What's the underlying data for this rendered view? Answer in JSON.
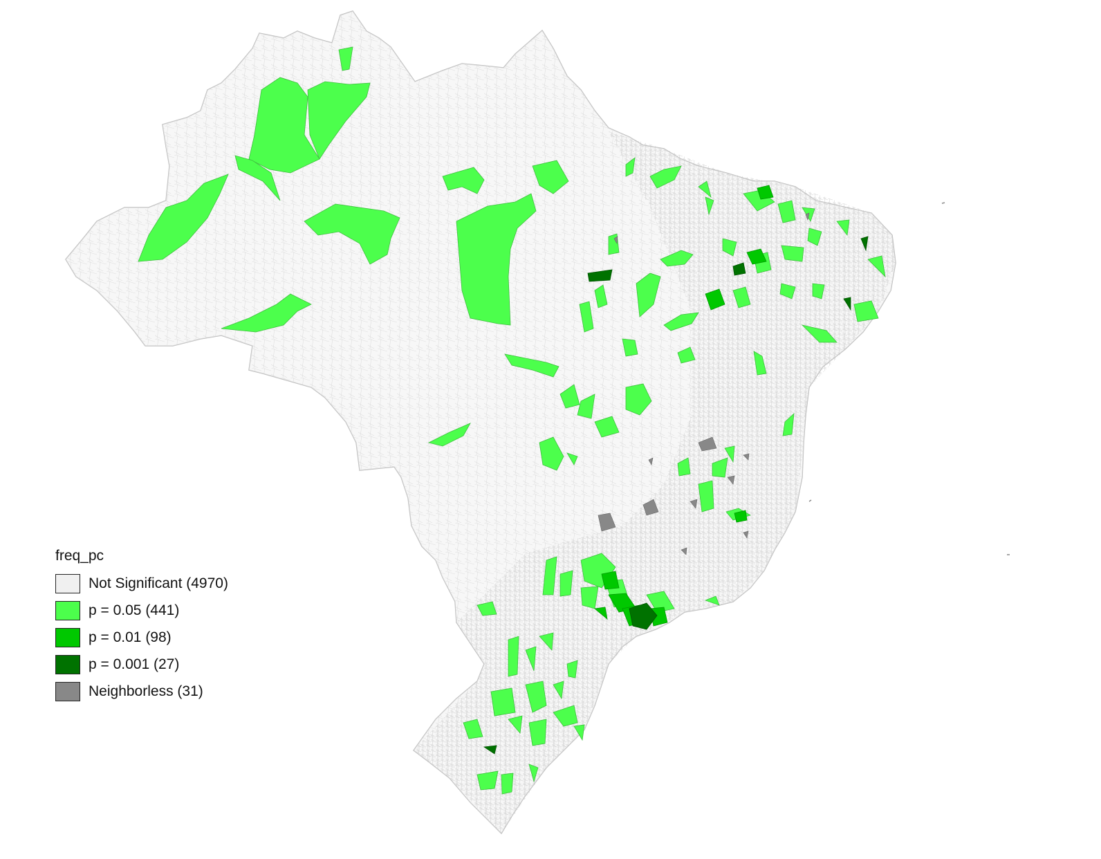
{
  "legend": {
    "title": "freq_pc",
    "items": [
      {
        "label": "Not Significant (4970)",
        "color": "#f0f0f0"
      },
      {
        "label": "p = 0.05 (441)",
        "color": "#4cff4c"
      },
      {
        "label": "p = 0.01 (98)",
        "color": "#00c800"
      },
      {
        "label": "p = 0.001 (27)",
        "color": "#007200"
      },
      {
        "label": "Neighborless (31)",
        "color": "#888888"
      }
    ]
  },
  "colors": {
    "border": "#bdbdbd",
    "background": "#ffffff"
  }
}
